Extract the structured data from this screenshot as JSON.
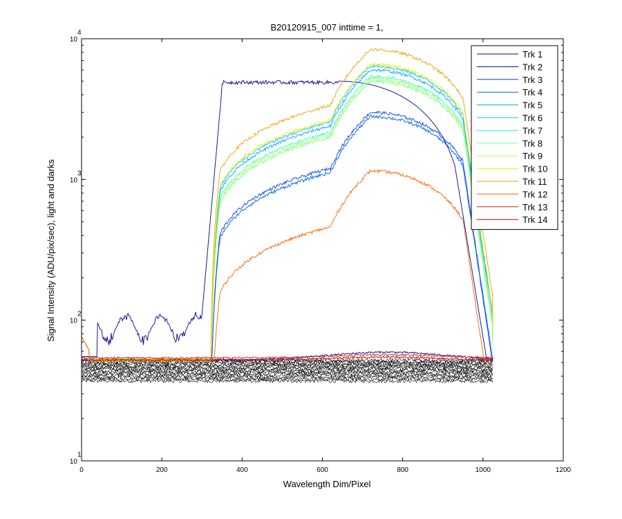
{
  "chart_data": {
    "type": "line",
    "title": "B20120915_007 inttime = 1,",
    "xlabel": "Wavelength Dim/Pixel",
    "ylabel": "Signal Intensity (ADU/pix/sec), light and darks",
    "xlim": [
      0,
      1200
    ],
    "ylim": [
      10,
      10000
    ],
    "yscale": "log",
    "grid": false,
    "legend_position": "top-right",
    "x_ticks": [
      0,
      200,
      400,
      600,
      800,
      1000,
      1200
    ],
    "x_tick_labels": [
      "0",
      "200",
      "400",
      "600",
      "800",
      "1000",
      "1200"
    ],
    "y_ticks": [
      {
        "value": 10,
        "base": "10",
        "exp": "1"
      },
      {
        "value": 100,
        "base": "10",
        "exp": "2"
      },
      {
        "value": 1000,
        "base": "10",
        "exp": "3"
      },
      {
        "value": 10000,
        "base": "10",
        "exp": "4"
      }
    ],
    "series": [
      {
        "name": "Trk 1",
        "color": "#0000b0",
        "shape": "dark_profile",
        "peak": 100
      },
      {
        "name": "Trk 2",
        "color": "#00008f",
        "shape": "plateau",
        "peak": 5000
      },
      {
        "name": "Trk 3",
        "color": "#0040ff",
        "shape": "profile",
        "peak": 3000
      },
      {
        "name": "Trk 4",
        "color": "#0060e0",
        "shape": "profile",
        "peak": 2800
      },
      {
        "name": "Trk 5",
        "color": "#00a0ff",
        "shape": "profile",
        "peak": 6000
      },
      {
        "name": "Trk 6",
        "color": "#00c8ff",
        "shape": "profile",
        "peak": 6400
      },
      {
        "name": "Trk 7",
        "color": "#30ffd0",
        "shape": "profile",
        "peak": 5400
      },
      {
        "name": "Trk 8",
        "color": "#70ff90",
        "shape": "profile",
        "peak": 5000
      },
      {
        "name": "Trk 9",
        "color": "#b0ff50",
        "shape": "profile",
        "peak": 5200
      },
      {
        "name": "Trk 10",
        "color": "#f0f000",
        "shape": "profile",
        "peak": 6600
      },
      {
        "name": "Trk 11",
        "color": "#f0a000",
        "shape": "profile",
        "peak": 8400
      },
      {
        "name": "Trk 12",
        "color": "#ff6000",
        "shape": "profile",
        "peak": 1150
      },
      {
        "name": "Trk 13",
        "color": "#e02000",
        "shape": "flat",
        "peak": 54
      },
      {
        "name": "Trk 14",
        "color": "#c00000",
        "shape": "flat",
        "peak": 52
      }
    ],
    "dark_series": {
      "color": "#000000",
      "x_range": [
        0,
        1024
      ],
      "y_range": [
        37,
        52
      ],
      "count": 14
    }
  }
}
